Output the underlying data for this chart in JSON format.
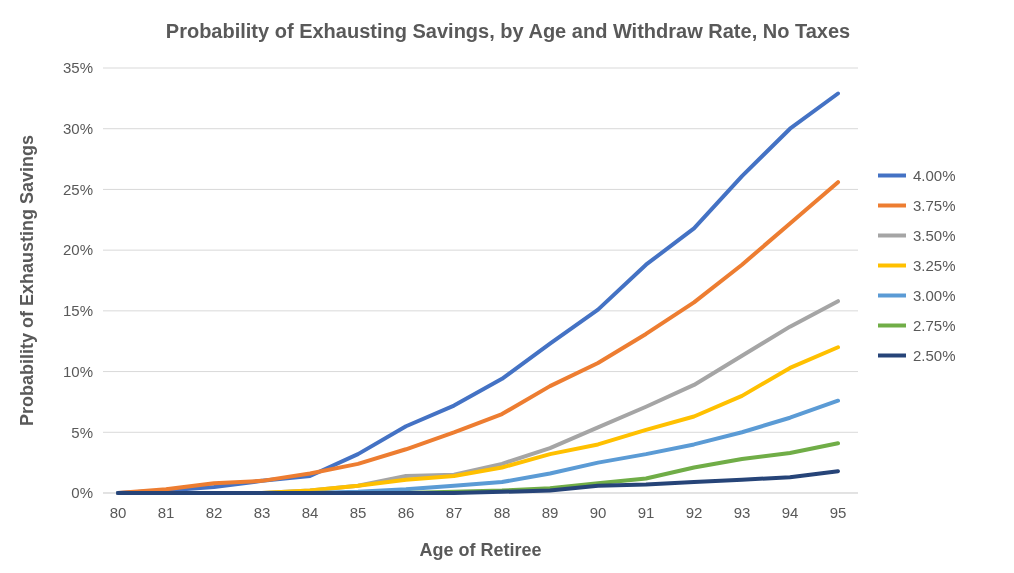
{
  "chart_data": {
    "type": "line",
    "title": "Probability of Exhausting Savings, by Age and Withdraw Rate, No Taxes",
    "xlabel": "Age of Retiree",
    "ylabel": "Probability of Exhausting Savings",
    "categories": [
      "80",
      "81",
      "82",
      "83",
      "84",
      "85",
      "86",
      "87",
      "88",
      "89",
      "90",
      "91",
      "92",
      "93",
      "94",
      "95"
    ],
    "series": [
      {
        "name": "4.00%",
        "color": "#4472c4",
        "values": [
          0,
          0.2,
          0.5,
          1.0,
          1.4,
          3.2,
          5.5,
          7.2,
          9.4,
          12.3,
          15.1,
          18.8,
          21.8,
          26.1,
          30.0,
          32.9
        ]
      },
      {
        "name": "3.75%",
        "color": "#ed7d31",
        "values": [
          0,
          0.3,
          0.8,
          1.0,
          1.6,
          2.4,
          3.6,
          5.0,
          6.5,
          8.8,
          10.7,
          13.1,
          15.7,
          18.8,
          22.2,
          25.6
        ]
      },
      {
        "name": "3.50%",
        "color": "#a5a5a5",
        "values": [
          0,
          0,
          0,
          0,
          0.2,
          0.6,
          1.4,
          1.5,
          2.4,
          3.7,
          5.4,
          7.1,
          8.9,
          11.3,
          13.7,
          15.8
        ]
      },
      {
        "name": "3.25%",
        "color": "#ffc000",
        "values": [
          null,
          null,
          0,
          0,
          0.2,
          0.6,
          1.1,
          1.4,
          2.1,
          3.2,
          4.0,
          5.2,
          6.3,
          8.0,
          10.3,
          12.0
        ]
      },
      {
        "name": "3.00%",
        "color": "#5b9bd5",
        "values": [
          0,
          0,
          0,
          0,
          0,
          0.1,
          0.3,
          0.6,
          0.9,
          1.6,
          2.5,
          3.2,
          4.0,
          5.0,
          6.2,
          7.6
        ]
      },
      {
        "name": "2.75%",
        "color": "#70ad47",
        "values": [
          null,
          null,
          null,
          0,
          0,
          0,
          0,
          0.1,
          0.2,
          0.4,
          0.8,
          1.2,
          2.1,
          2.8,
          3.3,
          4.1
        ]
      },
      {
        "name": "2.50%",
        "color": "#264478",
        "values": [
          0,
          0,
          0,
          0,
          0,
          0,
          0,
          0,
          0.1,
          0.2,
          0.6,
          0.7,
          0.9,
          1.1,
          1.3,
          1.8
        ]
      }
    ],
    "ylim": [
      0,
      35
    ],
    "yticks": [
      {
        "value": 0,
        "label": "0%"
      },
      {
        "value": 5,
        "label": "5%"
      },
      {
        "value": 10,
        "label": "10%"
      },
      {
        "value": 15,
        "label": "15%"
      },
      {
        "value": 20,
        "label": "20%"
      },
      {
        "value": 25,
        "label": "25%"
      },
      {
        "value": 30,
        "label": "30%"
      },
      {
        "value": 35,
        "label": "35%"
      }
    ],
    "grid": "y",
    "legend": "right",
    "line_style": "solid",
    "marker": "none"
  }
}
